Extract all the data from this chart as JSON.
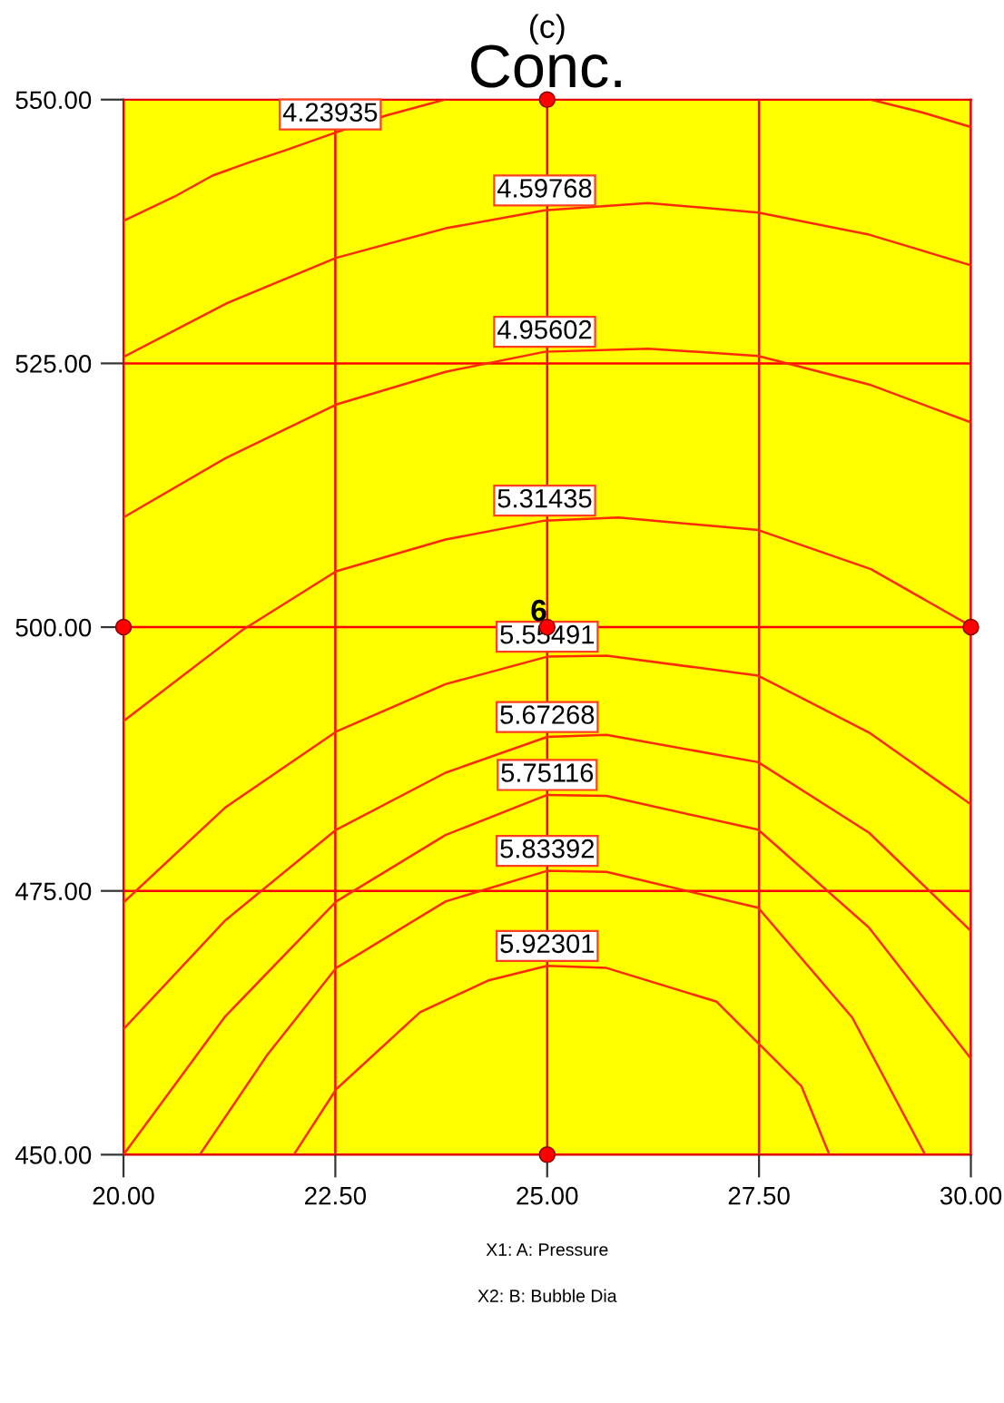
{
  "chart_data": {
    "type": "line",
    "title": "Conc.",
    "subtitle": "(c)",
    "xlabel": "X1: A: Pressure",
    "annotations": [
      "X2: B: Bubble Dia",
      {
        "text": "6",
        "x": 25,
        "y": 500
      }
    ],
    "xlim": [
      20,
      30
    ],
    "ylim": [
      450,
      550
    ],
    "xticks": [
      {
        "value": 20,
        "label": "20.00"
      },
      {
        "value": 22.5,
        "label": "22.50"
      },
      {
        "value": 25,
        "label": "25.00"
      },
      {
        "value": 27.5,
        "label": "27.50"
      },
      {
        "value": 30,
        "label": "30.00"
      }
    ],
    "yticks": [
      {
        "value": 450,
        "label": "450.00"
      },
      {
        "value": 475,
        "label": "475.00"
      },
      {
        "value": 500,
        "label": "500.00"
      },
      {
        "value": 525,
        "label": "525.00"
      },
      {
        "value": 550,
        "label": "550.00"
      }
    ],
    "grid": true,
    "legend": false,
    "line_style": "solid",
    "series": [
      {
        "name": "4.23935",
        "color": "#ff2a00",
        "x": [
          20,
          20.6,
          21.05,
          21.5,
          21.91,
          22.44,
          23.1,
          23.79,
          26.3,
          28.82,
          29.42,
          30
        ],
        "values": [
          538.5,
          540.8,
          542.8,
          544.1,
          545.2,
          546.7,
          548.5,
          550,
          null,
          550,
          548.8,
          547.4
        ]
      },
      {
        "name": "4.59768",
        "color": "#ff2a00",
        "x": [
          20,
          21.22,
          22.51,
          23.8,
          24.97,
          26.19,
          27.49,
          28.8,
          30
        ],
        "values": [
          525.6,
          530.7,
          535.0,
          537.8,
          539.5,
          540.2,
          539.3,
          537.2,
          534.3
        ]
      },
      {
        "name": "4.95602",
        "color": "#ff2a00",
        "x": [
          20,
          21.2,
          22.51,
          23.8,
          24.97,
          26.19,
          27.49,
          28.8,
          30
        ],
        "values": [
          510.4,
          516.0,
          521.1,
          524.2,
          526.1,
          526.4,
          525.7,
          523.0,
          519.4
        ]
      },
      {
        "name": "5.31435",
        "color": "#ff2a00",
        "x": [
          20,
          21.4,
          22.51,
          23.8,
          24.97,
          25.84,
          27.49,
          28.82,
          30
        ],
        "values": [
          491.1,
          499.7,
          505.3,
          508.3,
          510.1,
          510.4,
          509.2,
          505.5,
          500.1
        ]
      },
      {
        "name": "5.55491",
        "color": "#ff2a00",
        "x": [
          20,
          21.2,
          22.51,
          23.8,
          25.0,
          25.7,
          27.49,
          28.8,
          30
        ],
        "values": [
          473.9,
          482.9,
          490.1,
          494.6,
          497.2,
          497.3,
          495.4,
          490.0,
          483.2
        ]
      },
      {
        "name": "5.67268",
        "color": "#ff2a00",
        "x": [
          20,
          21.2,
          22.51,
          23.8,
          25.0,
          25.7,
          27.49,
          28.8,
          30
        ],
        "values": [
          461.9,
          472.2,
          480.8,
          486.2,
          489.6,
          489.8,
          487.2,
          480.5,
          471.2
        ]
      },
      {
        "name": "5.75116",
        "color": "#ff2a00",
        "x": [
          20,
          21.2,
          22.51,
          23.8,
          25.0,
          25.7,
          27.49,
          28.8,
          30
        ],
        "values": [
          450,
          463.1,
          474.0,
          480.3,
          484.1,
          484.0,
          480.8,
          471.5,
          459.1
        ]
      },
      {
        "name": "5.83392",
        "color": "#ff2a00",
        "x": [
          20.9,
          21.7,
          22.51,
          23.8,
          25.0,
          25.7,
          27.49,
          28.6,
          29.46
        ],
        "values": [
          450,
          459.5,
          467.7,
          474.0,
          476.9,
          476.8,
          473.4,
          463.0,
          450
        ]
      },
      {
        "name": "5.92301",
        "color": "#ff2a00",
        "x": [
          22.01,
          22.51,
          23.5,
          24.3,
          25.0,
          25.7,
          27.0,
          28.0,
          28.33
        ],
        "values": [
          450,
          456.2,
          463.5,
          466.5,
          467.9,
          467.7,
          464.5,
          456.5,
          450
        ]
      },
      {
        "type": "scatter",
        "marker": "circle",
        "color": "#ff0000",
        "x": [
          25,
          20,
          25,
          30,
          25
        ],
        "values": [
          550,
          500,
          500,
          500,
          450
        ]
      }
    ]
  }
}
